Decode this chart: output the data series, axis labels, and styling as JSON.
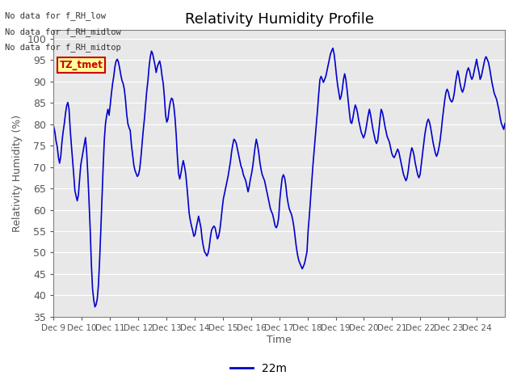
{
  "title": "Relativity Humidity Profile",
  "xlabel": "Time",
  "ylabel": "Relativity Humidity (%)",
  "ylim": [
    35,
    102
  ],
  "yticks": [
    35,
    40,
    45,
    50,
    55,
    60,
    65,
    70,
    75,
    80,
    85,
    90,
    95,
    100
  ],
  "legend_label": "22m",
  "legend_color": "#0000cc",
  "line_color": "#0000cc",
  "line_width": 1.2,
  "annotations": [
    "No data for f_RH_low",
    "No data for f_RH_midlow",
    "No data for f_RH_midtop"
  ],
  "annotation_color": "#333333",
  "tooltip_text": "TZ_tmet",
  "tooltip_bg": "#ffff99",
  "tooltip_border": "#cc0000",
  "bg_color": "#ffffff",
  "plot_bg_color": "#e8e8e8",
  "grid_color": "#ffffff",
  "axis_color": "#808080",
  "tick_label_color": "#555555",
  "xtick_labels": [
    "Dec 9",
    "Dec 10",
    "Dec 11",
    "Dec 12",
    "Dec 13",
    "Dec 14",
    "Dec 15",
    "Dec 16",
    "Dec 17",
    "Dec 18",
    "Dec 19",
    "Dec 20",
    "Dec 21",
    "Dec 22",
    "Dec 23",
    "Dec 24"
  ],
  "rh_values": [
    79.5,
    78.2,
    76.1,
    74.8,
    72.3,
    70.9,
    72.5,
    75.8,
    78.2,
    80.1,
    82.5,
    84.3,
    85.1,
    83.6,
    78.9,
    75.2,
    71.8,
    68.3,
    64.5,
    63.2,
    62.1,
    63.5,
    67.2,
    70.5,
    72.1,
    73.8,
    75.2,
    76.9,
    73.5,
    68.2,
    62.1,
    55.3,
    47.2,
    41.5,
    38.9,
    37.3,
    37.8,
    39.2,
    42.5,
    48.3,
    55.2,
    62.8,
    70.1,
    76.5,
    80.2,
    82.1,
    83.5,
    82.1,
    84.5,
    87.2,
    89.5,
    91.2,
    93.5,
    94.8,
    95.2,
    94.5,
    93.1,
    91.5,
    90.2,
    89.5,
    88.1,
    85.6,
    82.3,
    80.1,
    79.2,
    78.5,
    75.2,
    72.8,
    70.5,
    69.2,
    68.5,
    67.8,
    68.2,
    69.5,
    72.1,
    75.3,
    78.5,
    81.2,
    84.5,
    87.8,
    90.2,
    93.5,
    95.8,
    97.1,
    96.5,
    95.2,
    93.8,
    92.1,
    93.5,
    94.2,
    94.8,
    93.5,
    91.2,
    89.5,
    86.3,
    82.1,
    80.5,
    81.2,
    83.5,
    85.2,
    86.1,
    85.8,
    84.2,
    81.5,
    77.5,
    72.5,
    68.5,
    67.2,
    68.5,
    70.2,
    71.5,
    70.2,
    68.5,
    65.8,
    62.5,
    59.2,
    57.5,
    56.2,
    55.1,
    53.8,
    54.2,
    55.8,
    57.2,
    58.5,
    57.2,
    55.8,
    53.2,
    51.5,
    50.2,
    49.8,
    49.2,
    49.8,
    51.2,
    53.5,
    55.2,
    55.8,
    56.2,
    55.8,
    54.5,
    53.2,
    53.8,
    55.2,
    57.5,
    60.2,
    62.5,
    63.8,
    65.2,
    66.5,
    67.8,
    69.5,
    71.2,
    73.5,
    75.2,
    76.5,
    76.2,
    75.5,
    74.2,
    72.8,
    71.5,
    70.2,
    69.5,
    68.2,
    67.5,
    66.8,
    65.5,
    64.2,
    65.5,
    67.2,
    68.5,
    70.2,
    72.5,
    74.8,
    76.5,
    75.2,
    73.5,
    71.2,
    69.5,
    68.2,
    67.5,
    66.8,
    65.5,
    64.2,
    62.8,
    61.5,
    60.2,
    59.5,
    58.8,
    57.5,
    56.2,
    55.8,
    56.5,
    58.2,
    62.5,
    65.2,
    67.5,
    68.2,
    67.5,
    65.8,
    63.2,
    61.5,
    60.2,
    59.5,
    58.8,
    57.5,
    55.8,
    53.5,
    51.2,
    49.5,
    48.2,
    47.5,
    46.8,
    46.2,
    46.8,
    47.5,
    48.8,
    50.2,
    55.2,
    58.5,
    62.5,
    66.5,
    70.2,
    73.5,
    76.8,
    80.2,
    83.5,
    87.2,
    90.5,
    91.2,
    90.5,
    89.8,
    90.5,
    91.2,
    92.5,
    93.8,
    95.2,
    96.5,
    97.2,
    97.8,
    96.5,
    94.2,
    91.5,
    89.2,
    87.5,
    85.8,
    86.5,
    88.2,
    90.5,
    91.8,
    90.5,
    88.2,
    85.5,
    82.8,
    80.5,
    80.2,
    81.5,
    83.2,
    84.5,
    83.8,
    82.5,
    80.8,
    79.5,
    78.2,
    77.5,
    76.8,
    77.5,
    78.8,
    80.5,
    82.2,
    83.5,
    82.2,
    80.5,
    78.8,
    77.5,
    76.2,
    75.5,
    76.2,
    78.5,
    81.2,
    83.5,
    82.8,
    81.5,
    79.8,
    78.5,
    77.2,
    76.5,
    75.8,
    74.5,
    73.2,
    72.5,
    72.2,
    72.8,
    73.5,
    74.2,
    73.5,
    72.2,
    70.8,
    69.5,
    68.2,
    67.5,
    66.8,
    67.5,
    69.2,
    71.5,
    73.2,
    74.5,
    73.8,
    72.5,
    70.8,
    69.5,
    68.2,
    67.5,
    68.2,
    70.5,
    72.8,
    75.2,
    77.5,
    79.2,
    80.5,
    81.2,
    80.5,
    79.2,
    77.5,
    75.8,
    74.5,
    73.2,
    72.5,
    73.2,
    74.5,
    76.2,
    78.5,
    81.2,
    83.5,
    85.8,
    87.5,
    88.2,
    87.5,
    86.2,
    85.5,
    85.2,
    85.8,
    87.2,
    89.5,
    91.2,
    92.5,
    91.2,
    89.5,
    88.2,
    87.5,
    88.2,
    89.5,
    91.2,
    92.5,
    93.2,
    92.5,
    91.2,
    90.5,
    91.2,
    92.5,
    93.8,
    95.2,
    93.5,
    92.2,
    90.5,
    91.2,
    92.5,
    93.8,
    95.2,
    95.8,
    95.2,
    94.5,
    93.2,
    91.5,
    89.8,
    88.5,
    87.2,
    86.5,
    85.8,
    84.5,
    83.2,
    81.5,
    80.2,
    79.5,
    78.8,
    80.2
  ]
}
